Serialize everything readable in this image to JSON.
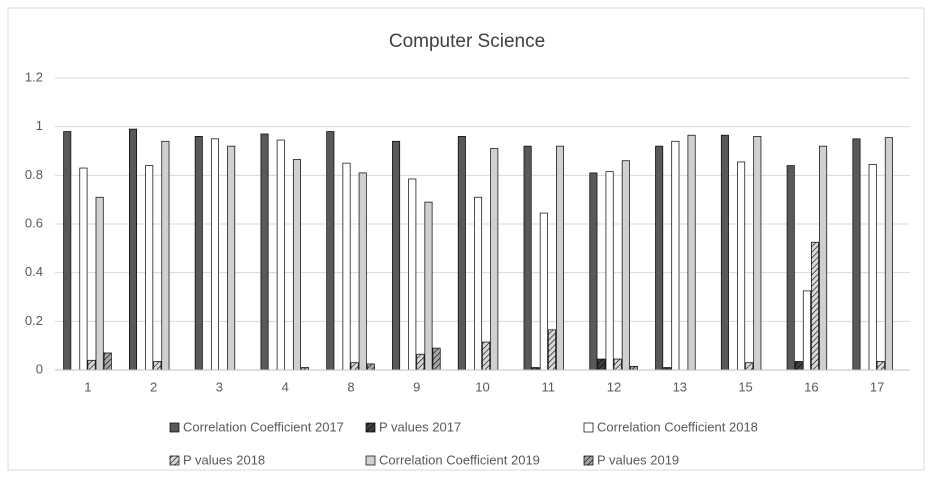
{
  "chart_data": {
    "type": "bar",
    "title": "Computer Science",
    "categories": [
      "1",
      "2",
      "3",
      "4",
      "8",
      "9",
      "10",
      "11",
      "12",
      "13",
      "15",
      "16",
      "17"
    ],
    "ylim": [
      0,
      1.2
    ],
    "yticks": [
      0,
      0.2,
      0.4,
      0.6,
      0.8,
      1,
      {
        "value": 1.2,
        "label": "1.2"
      }
    ],
    "grid": true,
    "legend": "bottom",
    "series": [
      {
        "name": "Correlation Coefficient 2017",
        "color": "#595959",
        "pattern": "solid",
        "values": [
          0.98,
          0.99,
          0.96,
          0.97,
          0.98,
          0.94,
          0.96,
          0.92,
          0.81,
          0.92,
          0.965,
          0.84,
          0.95
        ]
      },
      {
        "name": "P values 2017",
        "color": "#404040",
        "pattern": "hatch",
        "values": [
          0,
          0,
          0,
          0,
          0,
          0,
          0,
          0.01,
          0.045,
          0.01,
          0,
          0.035,
          0
        ]
      },
      {
        "name": "Correlation Coefficient 2018",
        "color": "#ffffff",
        "pattern": "solid",
        "values": [
          0.83,
          0.84,
          0.95,
          0.945,
          0.85,
          0.785,
          0.71,
          0.645,
          0.815,
          0.94,
          0.855,
          0.325,
          0.845
        ]
      },
      {
        "name": "P values 2018",
        "color": "#d9d9d9",
        "pattern": "hatch",
        "values": [
          0.04,
          0.035,
          0,
          0,
          0.03,
          0.065,
          0.115,
          0.165,
          0.045,
          0,
          0.03,
          0.525,
          0.035
        ]
      },
      {
        "name": "Correlation Coefficient 2019",
        "color": "#d0d0d0",
        "pattern": "solid",
        "values": [
          0.71,
          0.94,
          0.92,
          0.865,
          0.81,
          0.69,
          0.91,
          0.92,
          0.86,
          0.965,
          0.96,
          0.92,
          0.955
        ]
      },
      {
        "name": "P values 2019",
        "color": "#a6a6a6",
        "pattern": "hatch",
        "values": [
          0.07,
          0,
          0,
          0.01,
          0.025,
          0.09,
          0,
          0,
          0.015,
          0,
          0,
          0,
          0
        ]
      }
    ]
  }
}
